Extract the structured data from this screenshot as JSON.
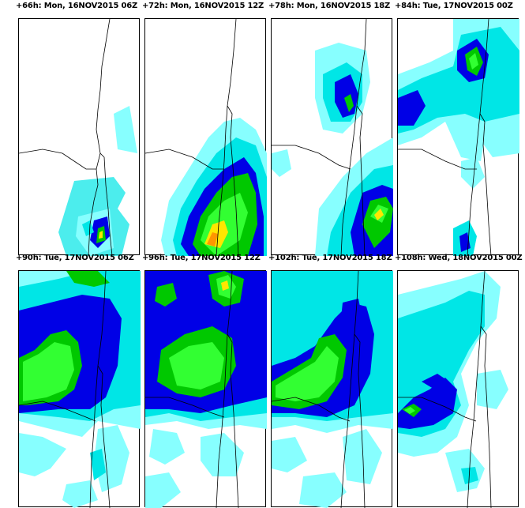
{
  "panels": [
    {
      "title": "+66h: Mon, 16NOV2015 06Z"
    },
    {
      "title": "+72h: Mon, 16NOV2015 12Z"
    },
    {
      "title": "+78h: Mon, 16NOV2015 18Z"
    },
    {
      "title": "+84h: Tue, 17NOV2015 00Z"
    },
    {
      "title": "+90h: Tue, 17NOV2015 06Z"
    },
    {
      "title": "+96h: Tue, 17NOV2015 12Z"
    },
    {
      "title": "+102h: Tue, 17NOV2015 18Z"
    },
    {
      "title": "+108h: Wed, 18NOV2015 00Z"
    }
  ],
  "colors": {
    "level1": "#00e6e6",
    "level2": "#87ffff",
    "level3": "#0000e6",
    "level4": "#00c800",
    "level5": "#32ff32",
    "level6": "#ffe600",
    "level7": "#ff9600",
    "coastline": "#000000"
  }
}
